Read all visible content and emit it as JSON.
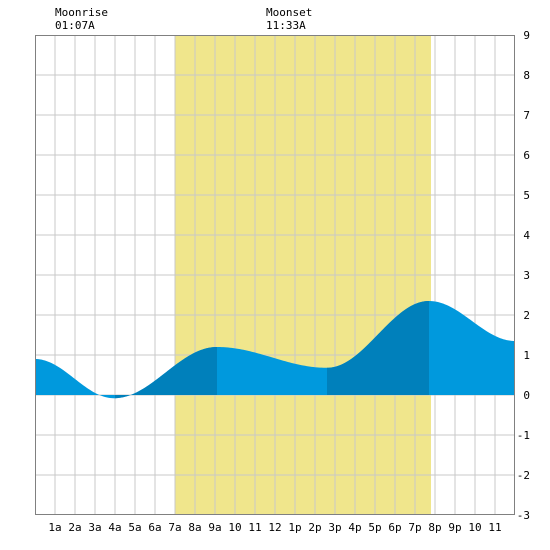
{
  "moon": {
    "rise_label": "Moonrise",
    "rise_time": "01:07A",
    "set_label": "Moonset",
    "set_time": "11:33A"
  },
  "colors": {
    "daylight": "#f0e68c",
    "tide_light": "#0099dd",
    "tide_dark": "#0080bb",
    "grid": "#c8c8c8",
    "frame": "#808080"
  },
  "chart_data": {
    "type": "area",
    "xlabel": "",
    "ylabel": "",
    "xlim": [
      0,
      24
    ],
    "ylim": [
      -3,
      9
    ],
    "grid": true,
    "x_tick_labels": [
      "1a",
      "2a",
      "3a",
      "4a",
      "5a",
      "6a",
      "7a",
      "8a",
      "9a",
      "10",
      "11",
      "12",
      "1p",
      "2p",
      "3p",
      "4p",
      "5p",
      "6p",
      "7p",
      "8p",
      "9p",
      "10",
      "11"
    ],
    "y_tick_labels": [
      "-3",
      "-2",
      "-1",
      "0",
      "1",
      "2",
      "3",
      "4",
      "5",
      "6",
      "7",
      "8",
      "9"
    ],
    "daylight": {
      "start_hour": 7.0,
      "end_hour": 19.8
    },
    "moonrise_hour": 1.1,
    "moonset_hour": 11.55,
    "tide_extrema": [
      {
        "hour": 0.0,
        "height": 0.9
      },
      {
        "hour": 3.95,
        "height": -0.08
      },
      {
        "hour": 9.1,
        "height": 1.2
      },
      {
        "hour": 14.6,
        "height": 0.68
      },
      {
        "hour": 19.7,
        "height": 2.35
      },
      {
        "hour": 24.0,
        "height": 1.35
      }
    ],
    "dark_bands": [
      {
        "start_hour": 9.1,
        "end_hour": 4.0
      },
      {
        "start_hour": 14.6,
        "end_hour": 19.7
      }
    ]
  }
}
